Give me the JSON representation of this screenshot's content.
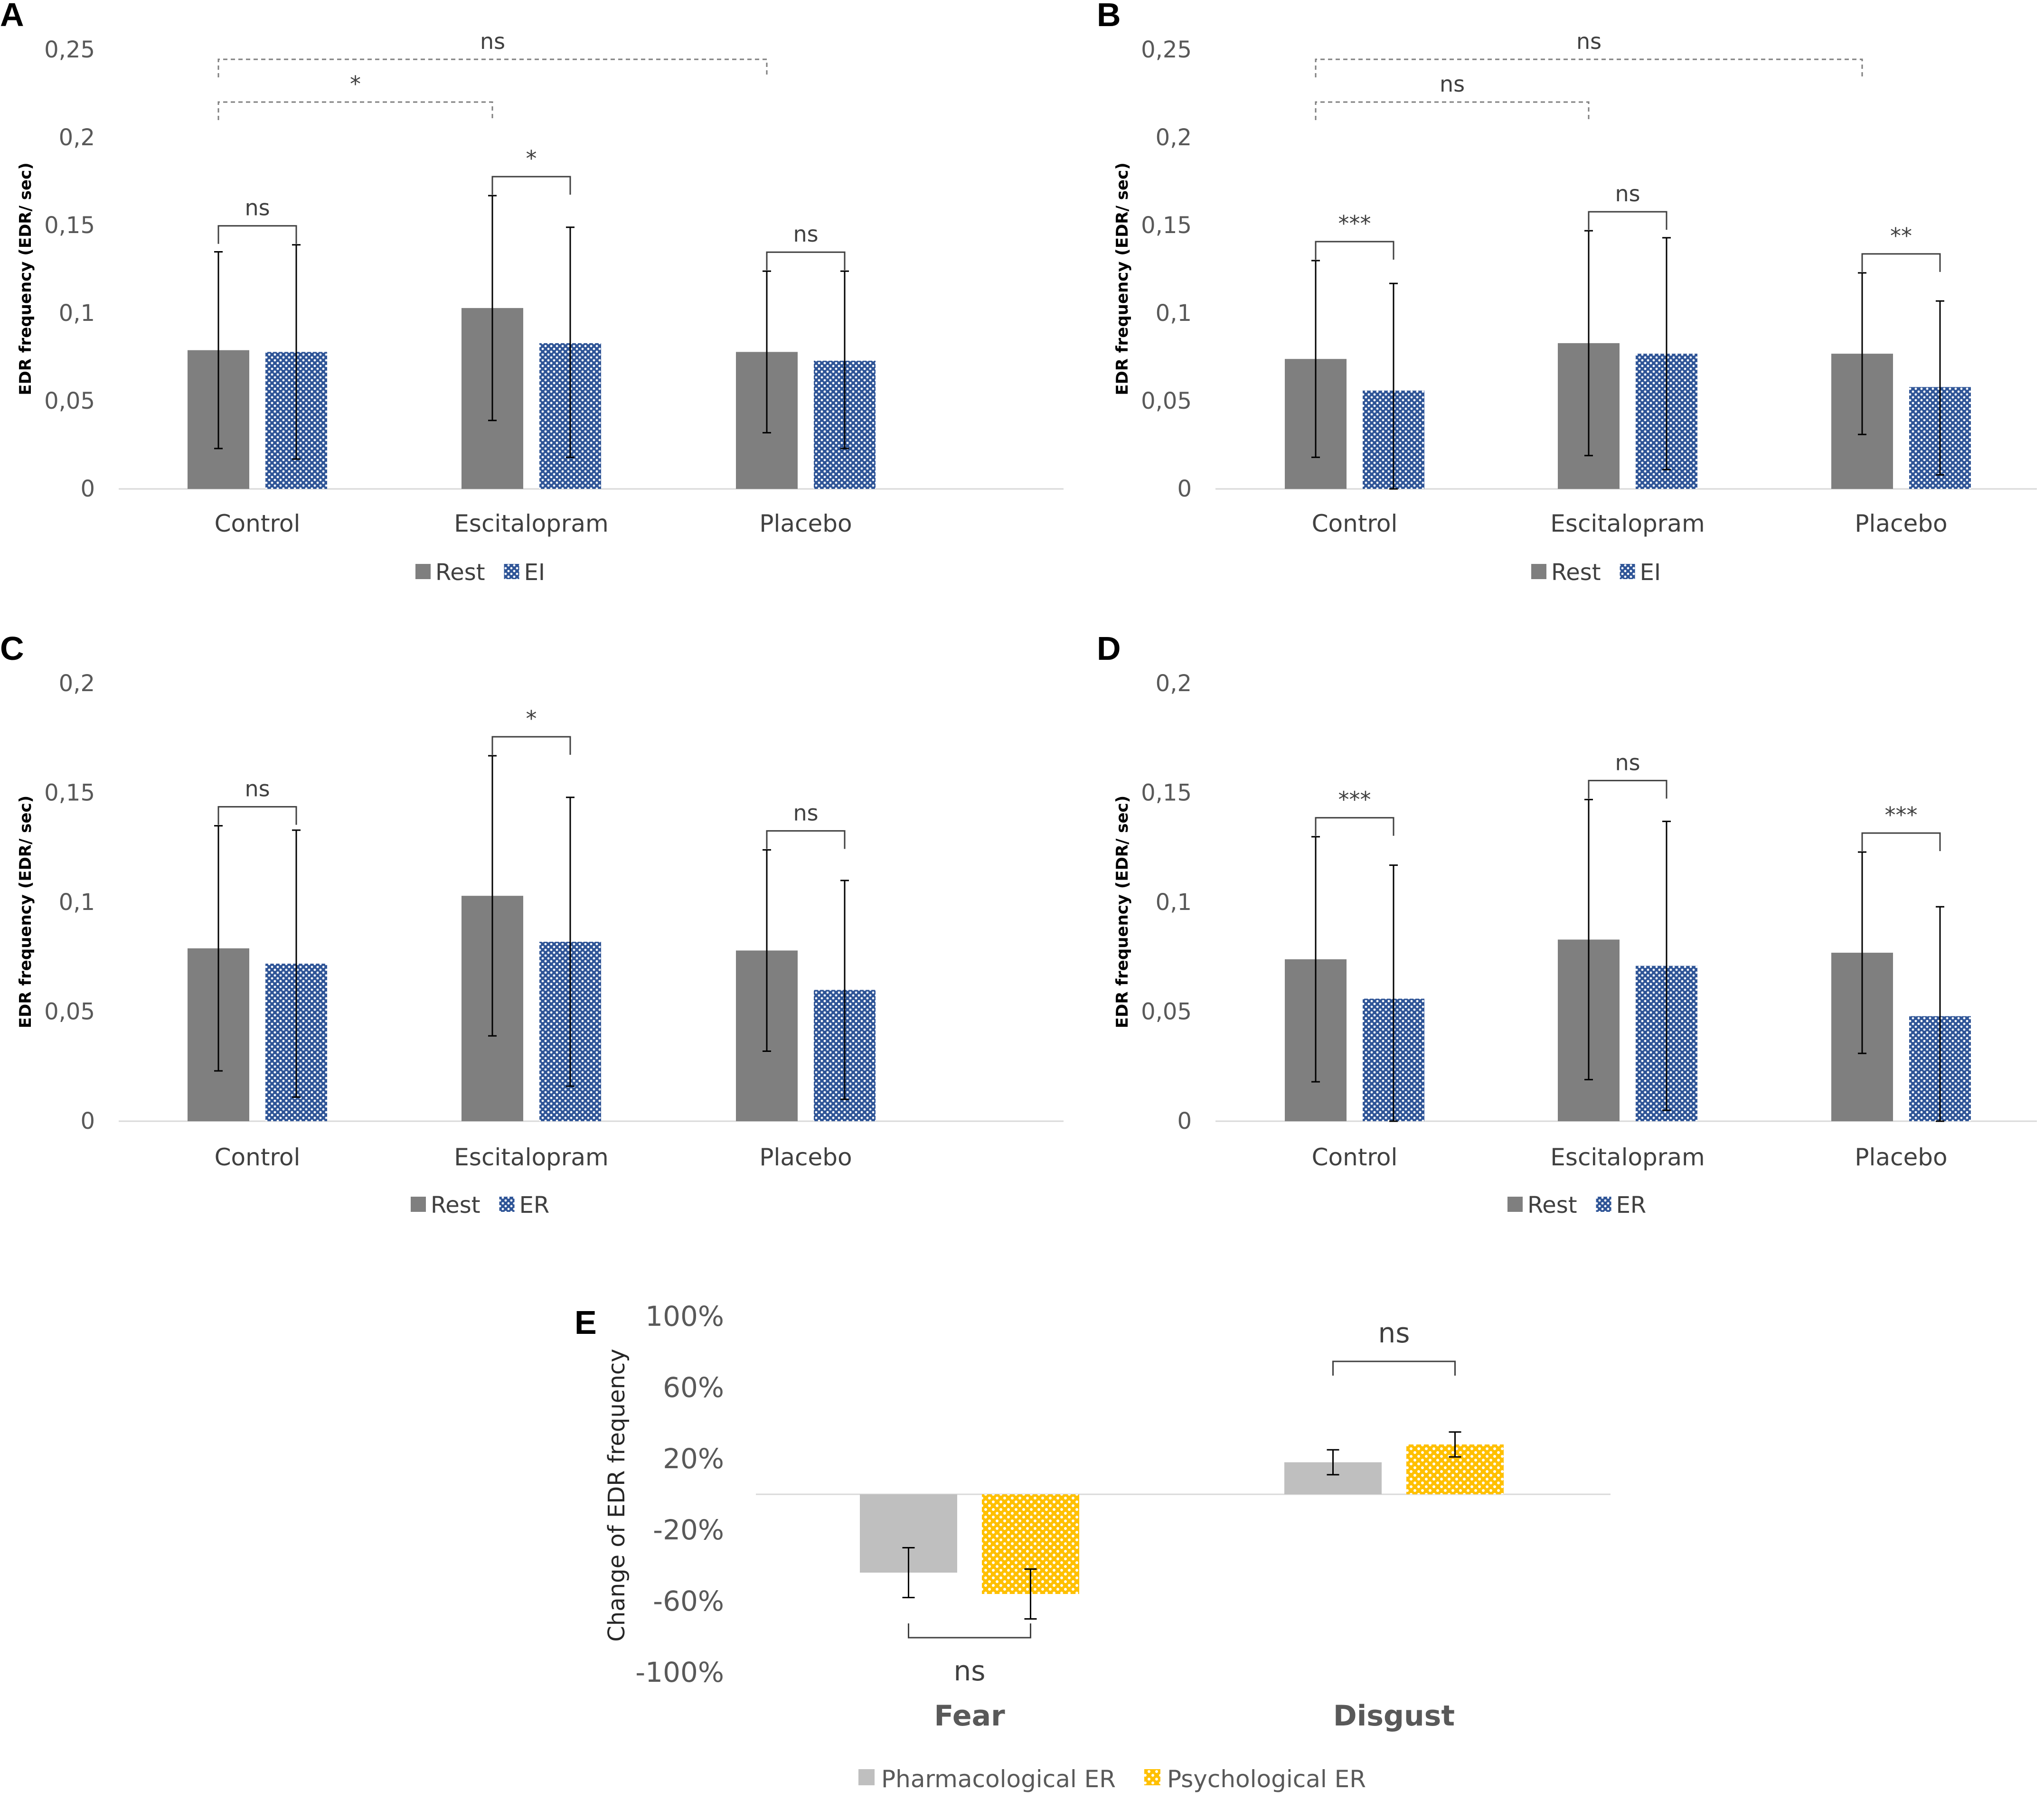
{
  "figure": {
    "letters": [
      "A",
      "B",
      "C",
      "D",
      "E"
    ]
  },
  "colors": {
    "rest": "#7f7f7f",
    "blue": "#2f5597",
    "pharm": "#bfbfbf",
    "psych": "#ffc000",
    "axis": "#d9d9d9",
    "error": "#000000",
    "bracket": "#404040"
  },
  "chart_data": [
    {
      "panel": "A",
      "type": "bar",
      "categories": [
        "Control",
        "Escitalopram",
        "Placebo"
      ],
      "ylabel": "EDR frequency (EDR/ sec)",
      "ylim": [
        0,
        0.25
      ],
      "yticks": [
        "0",
        "0,05",
        "0,1",
        "0,15",
        "0,2",
        "0,25"
      ],
      "series": [
        {
          "name": "Rest",
          "values": [
            0.079,
            0.103,
            0.078
          ],
          "err_low": [
            0.023,
            0.039,
            0.032
          ],
          "err_high": [
            0.135,
            0.167,
            0.124
          ]
        },
        {
          "name": "EI",
          "values": [
            0.078,
            0.083,
            0.073
          ],
          "err_low": [
            0.017,
            0.018,
            0.023
          ],
          "err_high": [
            0.139,
            0.149,
            0.124
          ]
        }
      ],
      "within_sig": [
        "ns",
        "*",
        "ns"
      ],
      "between_sig": [
        {
          "from": 0,
          "to": 1,
          "label": "*"
        },
        {
          "from": 0,
          "to": 2,
          "label": "ns"
        }
      ]
    },
    {
      "panel": "B",
      "type": "bar",
      "categories": [
        "Control",
        "Escitalopram",
        "Placebo"
      ],
      "ylabel": "EDR frequency (EDR/ sec)",
      "ylim": [
        0,
        0.25
      ],
      "yticks": [
        "0",
        "0,05",
        "0,1",
        "0,15",
        "0,2",
        "0,25"
      ],
      "series": [
        {
          "name": "Rest",
          "values": [
            0.074,
            0.083,
            0.077
          ],
          "err_low": [
            0.018,
            0.019,
            0.031
          ],
          "err_high": [
            0.13,
            0.147,
            0.123
          ]
        },
        {
          "name": "EI",
          "values": [
            0.056,
            0.077,
            0.058
          ],
          "err_low": [
            0.0,
            0.011,
            0.008
          ],
          "err_high": [
            0.117,
            0.143,
            0.107
          ]
        }
      ],
      "within_sig": [
        "***",
        "ns",
        "**"
      ],
      "between_sig": [
        {
          "from": 0,
          "to": 1,
          "label": "ns"
        },
        {
          "from": 0,
          "to": 2,
          "label": "ns"
        }
      ]
    },
    {
      "panel": "C",
      "type": "bar",
      "categories": [
        "Control",
        "Escitalopram",
        "Placebo"
      ],
      "ylabel": "EDR frequency (EDR/ sec)",
      "ylim": [
        0,
        0.2
      ],
      "yticks": [
        "0",
        "0,05",
        "0,1",
        "0,15",
        "0,2"
      ],
      "series": [
        {
          "name": "Rest",
          "values": [
            0.079,
            0.103,
            0.078
          ],
          "err_low": [
            0.023,
            0.039,
            0.032
          ],
          "err_high": [
            0.135,
            0.167,
            0.124
          ]
        },
        {
          "name": "ER",
          "values": [
            0.072,
            0.082,
            0.06
          ],
          "err_low": [
            0.011,
            0.016,
            0.01
          ],
          "err_high": [
            0.133,
            0.148,
            0.11
          ]
        }
      ],
      "within_sig": [
        "ns",
        "*",
        "ns"
      ],
      "between_sig": []
    },
    {
      "panel": "D",
      "type": "bar",
      "categories": [
        "Control",
        "Escitalopram",
        "Placebo"
      ],
      "ylabel": "EDR frequency (EDR/ sec)",
      "ylim": [
        0,
        0.2
      ],
      "yticks": [
        "0",
        "0,05",
        "0,1",
        "0,15",
        "0,2"
      ],
      "series": [
        {
          "name": "Rest",
          "values": [
            0.074,
            0.083,
            0.077
          ],
          "err_low": [
            0.018,
            0.019,
            0.031
          ],
          "err_high": [
            0.13,
            0.147,
            0.123
          ]
        },
        {
          "name": "ER",
          "values": [
            0.056,
            0.071,
            0.048
          ],
          "err_low": [
            0.0,
            0.005,
            0.0
          ],
          "err_high": [
            0.117,
            0.137,
            0.098
          ]
        }
      ],
      "within_sig": [
        "***",
        "ns",
        "***"
      ],
      "between_sig": []
    },
    {
      "panel": "E",
      "type": "bar",
      "categories": [
        "Fear",
        "Disgust"
      ],
      "ylabel": "Change of EDR frequency",
      "ylim": [
        -100,
        100
      ],
      "yticks": [
        "-100%",
        "-60%",
        "-20%",
        "20%",
        "60%",
        "100%"
      ],
      "series": [
        {
          "name": "Pharmacological ER",
          "values": [
            -44,
            18
          ],
          "err_low": [
            -58,
            11
          ],
          "err_high": [
            -30,
            25
          ]
        },
        {
          "name": "Psychological ER",
          "values": [
            -56,
            28
          ],
          "err_low": [
            -70,
            21
          ],
          "err_high": [
            -42,
            35
          ]
        }
      ],
      "within_sig": [
        "ns",
        "ns"
      ],
      "between_sig": []
    }
  ]
}
